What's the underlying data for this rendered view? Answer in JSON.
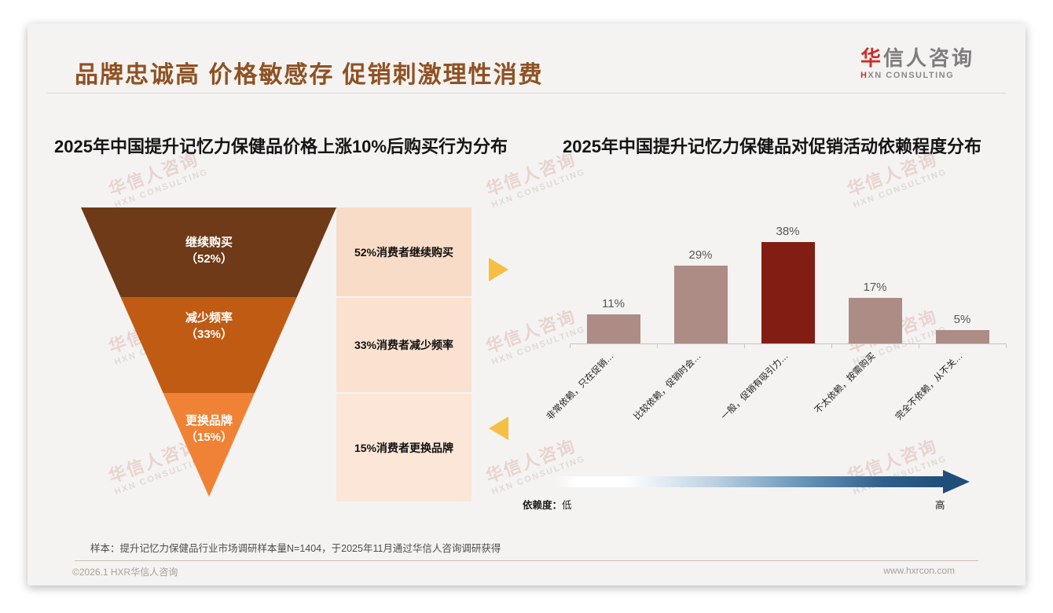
{
  "slide": {
    "title": "品牌忠诚高 价格敏感存 促销刺激理性消费"
  },
  "logo": {
    "cn_red": "华",
    "cn_rest": "信人咨询",
    "en_red": "H",
    "en_rest": "XN CONSULTING"
  },
  "watermark": {
    "line1": "华信人咨询",
    "line2": "HXN CONSULTING"
  },
  "chart_data": [
    {
      "type": "funnel",
      "title": "2025年中国提升记忆力保健品价格上涨10%后购买行为分布",
      "categories": [
        "继续购买",
        "减少频率",
        "更换品牌"
      ],
      "values": [
        52,
        33,
        15
      ],
      "value_labels": [
        "（52%）",
        "（33%）",
        "（15%）"
      ],
      "side_labels": [
        "52%消费者继续购买",
        "33%消费者减少频率",
        "15%消费者更换品牌"
      ],
      "segment_colors": [
        "#6e3a17",
        "#c05b13",
        "#ef8235"
      ],
      "side_block_colors": [
        "#f8dcc7",
        "#fae1d0",
        "#fbe6d7"
      ]
    },
    {
      "type": "bar",
      "title": "2025年中国提升记忆力保健品对促销活动依赖程度分布",
      "categories": [
        "非常依赖，只在促销…",
        "比较依赖，促销时会…",
        "一般，促销有吸引力…",
        "不太依赖，按需购买",
        "完全不依赖，从不关…"
      ],
      "values": [
        11,
        29,
        38,
        17,
        5
      ],
      "value_labels": [
        "11%",
        "29%",
        "38%",
        "17%",
        "5%"
      ],
      "highlight_index": 2,
      "bar_color": "#ac8c84",
      "highlight_color": "#821d13",
      "ylim": [
        0,
        40
      ],
      "grid": false,
      "legend": "none"
    }
  ],
  "dependency_scale": {
    "label": "依赖度：",
    "low": "低",
    "high": "高"
  },
  "accents": {
    "gold_arrow": "#f6be43",
    "gradient_start": "#ffffff",
    "gradient_end": "#1f4e79",
    "title_color": "#8f5123",
    "logo_red": "#c9302a"
  },
  "footer": {
    "sample_note": "样本：提升记忆力保健品行业市场调研样本量N=1404，于2025年11月通过华信人咨询调研获得",
    "copyright": "©2026.1 HXR华信人咨询",
    "website": "www.hxrcon.com"
  }
}
